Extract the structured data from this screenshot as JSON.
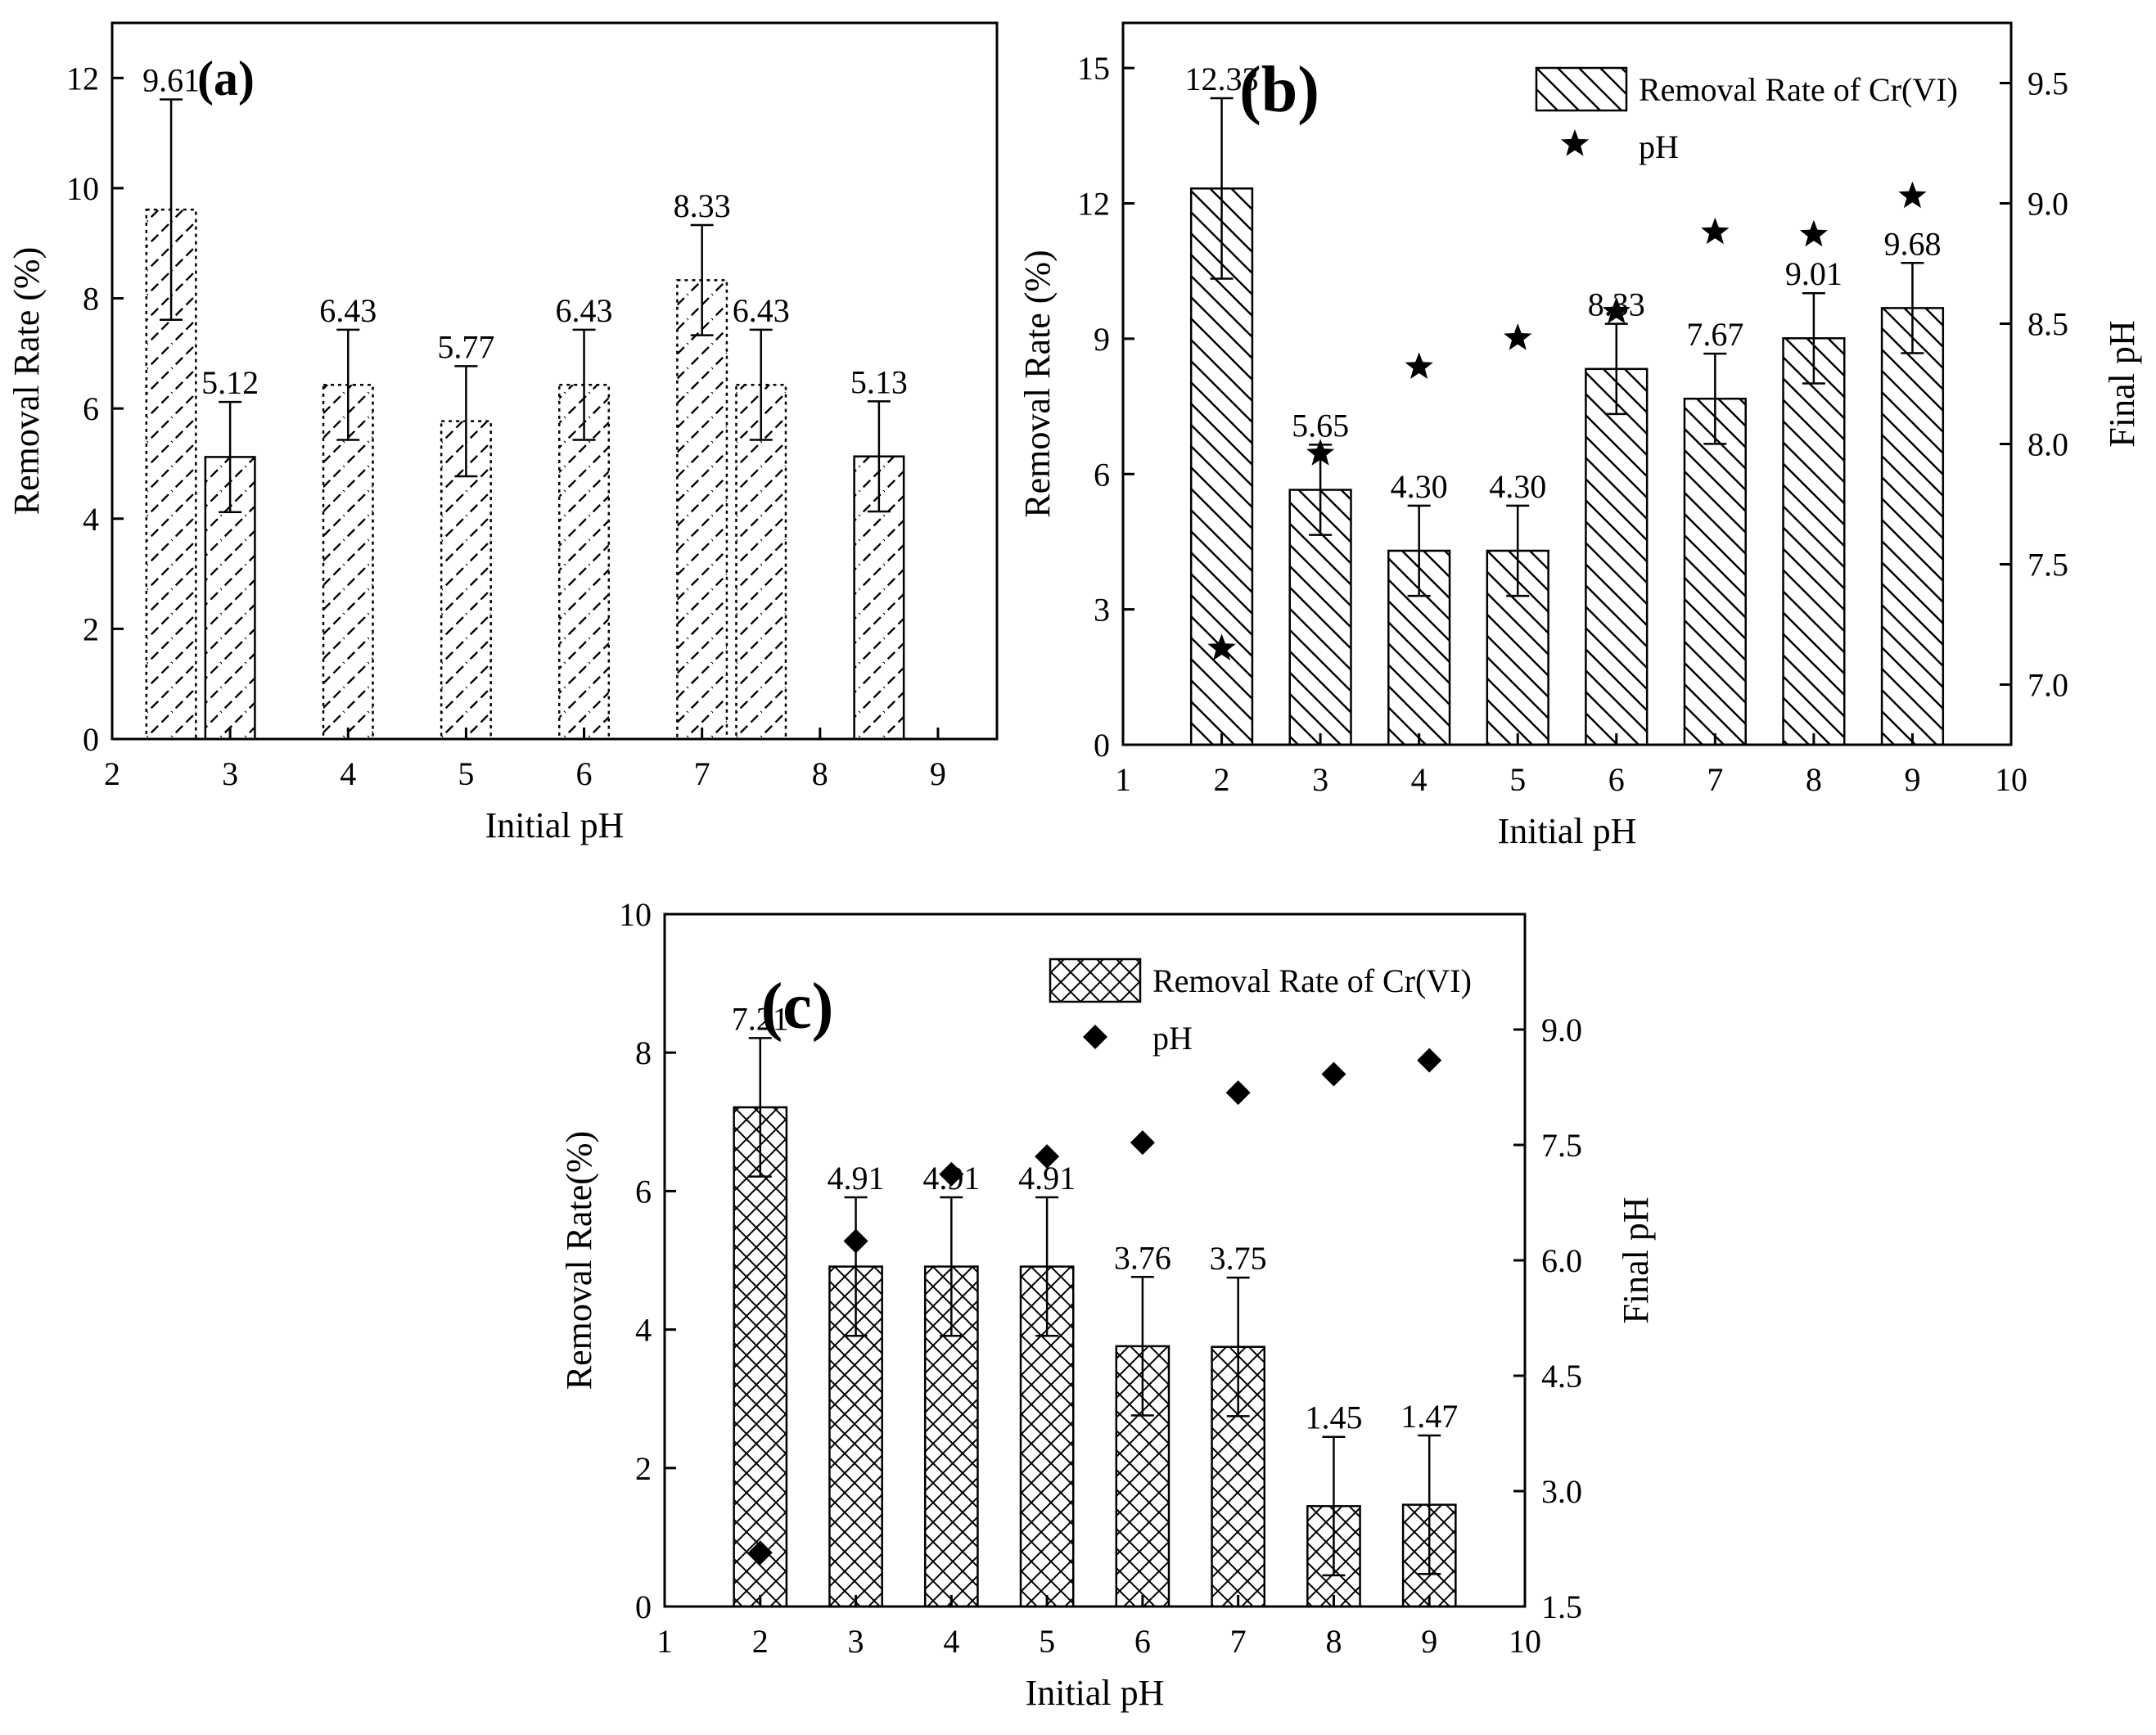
{
  "chart_data": [
    {
      "id": "a",
      "type": "bar",
      "panel_label": "(a)",
      "xlabel": "Initial pH",
      "ylabel": "Removal Rate (%)",
      "xlim": [
        2,
        9.5
      ],
      "ylim": [
        0,
        13
      ],
      "xticks": [
        2,
        3,
        4,
        5,
        6,
        7,
        8,
        9
      ],
      "yticks": [
        0,
        2,
        4,
        6,
        8,
        10,
        12
      ],
      "bar_width": 0.42,
      "bars": [
        {
          "x": 2.5,
          "value": 9.61,
          "label": "9.61",
          "err": 2.0,
          "style": "dotted"
        },
        {
          "x": 3.0,
          "value": 5.12,
          "label": "5.12",
          "err": 1.0,
          "style": "solid"
        },
        {
          "x": 4.0,
          "value": 6.43,
          "label": "6.43",
          "err": 1.0,
          "style": "dotted"
        },
        {
          "x": 5.0,
          "value": 5.77,
          "label": "5.77",
          "err": 1.0,
          "style": "dotted"
        },
        {
          "x": 6.0,
          "value": 6.43,
          "label": "6.43",
          "err": 1.0,
          "style": "dotted"
        },
        {
          "x": 7.0,
          "value": 8.33,
          "label": "8.33",
          "err": 1.0,
          "style": "dotted"
        },
        {
          "x": 7.5,
          "value": 6.43,
          "label": "6.43",
          "err": 1.0,
          "style": "dotted"
        },
        {
          "x": 8.5,
          "value": 5.13,
          "label": "5.13",
          "err": 1.0,
          "style": "solid"
        }
      ]
    },
    {
      "id": "b",
      "type": "bar",
      "panel_label": "(b)",
      "xlabel": "Initial pH",
      "ylabel": "Removal Rate (%)",
      "y2label": "Final pH",
      "xlim": [
        1,
        10
      ],
      "ylim": [
        0,
        16
      ],
      "y2lim": [
        6.75,
        9.75
      ],
      "xticks": [
        1,
        2,
        3,
        4,
        5,
        6,
        7,
        8,
        9,
        10
      ],
      "yticks": [
        0,
        3,
        6,
        9,
        12,
        15
      ],
      "y2ticks": [
        7.0,
        7.5,
        8.0,
        8.5,
        9.0,
        9.5
      ],
      "bar_width": 0.62,
      "legend": {
        "bar_label": "Removal Rate of Cr(VI)",
        "marker_label": "pH",
        "position": "top-right"
      },
      "bars": [
        {
          "x": 2,
          "value": 12.33,
          "label": "12.33",
          "err": 2.0
        },
        {
          "x": 3,
          "value": 5.65,
          "label": "5.65",
          "err": 1.0
        },
        {
          "x": 4,
          "value": 4.3,
          "label": "4.30",
          "err": 1.0
        },
        {
          "x": 5,
          "value": 4.3,
          "label": "4.30",
          "err": 1.0
        },
        {
          "x": 6,
          "value": 8.33,
          "label": "8.33",
          "err": 1.0
        },
        {
          "x": 7,
          "value": 7.67,
          "label": "7.67",
          "err": 1.0
        },
        {
          "x": 8,
          "value": 9.01,
          "label": "9.01",
          "err": 1.0
        },
        {
          "x": 9,
          "value": 9.68,
          "label": "9.68",
          "err": 1.0
        }
      ],
      "final_ph": {
        "marker": "star",
        "x": [
          2,
          3,
          4,
          5,
          6,
          7,
          8,
          9
        ],
        "values": [
          7.15,
          7.96,
          8.32,
          8.44,
          8.55,
          8.88,
          8.87,
          9.03
        ]
      }
    },
    {
      "id": "c",
      "type": "bar",
      "panel_label": "(c)",
      "xlabel": "Initial pH",
      "ylabel": "Removal Rate(%)",
      "y2label": "Final pH",
      "xlim": [
        1,
        10
      ],
      "ylim": [
        0,
        10
      ],
      "y2lim": [
        1.5,
        10.5
      ],
      "xticks": [
        1,
        2,
        3,
        4,
        5,
        6,
        7,
        8,
        9,
        10
      ],
      "yticks": [
        0,
        2,
        4,
        6,
        8,
        10
      ],
      "y2ticks": [
        1.5,
        3.0,
        4.5,
        6.0,
        7.5,
        9.0
      ],
      "bar_width": 0.55,
      "legend": {
        "bar_label": "Removal Rate of Cr(VI)",
        "marker_label": "pH",
        "position": "top-right"
      },
      "bars": [
        {
          "x": 2,
          "value": 7.21,
          "label": "7.21",
          "err": 1.0
        },
        {
          "x": 3,
          "value": 4.91,
          "label": "4.91",
          "err": 1.0
        },
        {
          "x": 4,
          "value": 4.91,
          "label": "4.91",
          "err": 1.0
        },
        {
          "x": 5,
          "value": 4.91,
          "label": "4.91",
          "err": 1.0
        },
        {
          "x": 6,
          "value": 3.76,
          "label": "3.76",
          "err": 1.0
        },
        {
          "x": 7,
          "value": 3.75,
          "label": "3.75",
          "err": 1.0
        },
        {
          "x": 8,
          "value": 1.45,
          "label": "1.45",
          "err": 1.0
        },
        {
          "x": 9,
          "value": 1.47,
          "label": "1.47",
          "err": 1.0
        }
      ],
      "final_ph": {
        "marker": "diamond",
        "x": [
          2,
          3,
          4,
          5,
          6,
          7,
          8,
          9
        ],
        "values": [
          2.2,
          6.25,
          7.12,
          7.35,
          7.53,
          8.18,
          8.42,
          8.6
        ]
      }
    }
  ]
}
